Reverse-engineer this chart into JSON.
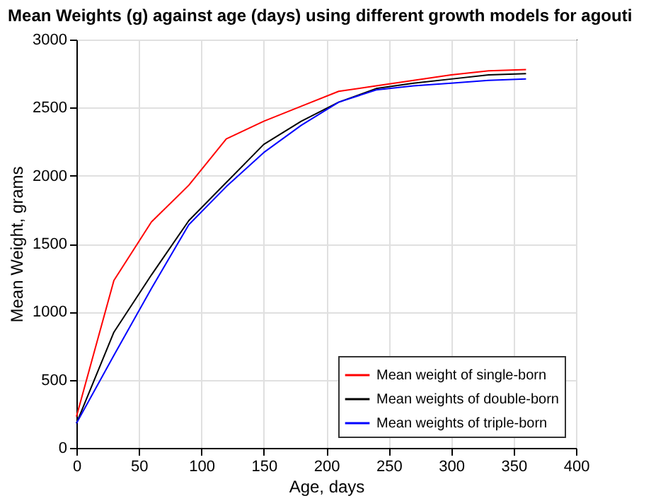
{
  "chart_data": {
    "type": "line",
    "title": "Mean Weights (g) against age (days) using different growth models for agouti",
    "xlabel": "Age, days",
    "ylabel": "Mean Weight, grams",
    "x": [
      0,
      30,
      60,
      90,
      120,
      150,
      180,
      210,
      240,
      270,
      300,
      330,
      360
    ],
    "series": [
      {
        "name": "Mean weight of single-born",
        "color": "#ff0000",
        "values": [
          230,
          1230,
          1660,
          1930,
          2270,
          2400,
          2510,
          2620,
          2660,
          2700,
          2740,
          2770,
          2780
        ]
      },
      {
        "name": "Mean weights of double-born",
        "color": "#000000",
        "values": [
          180,
          850,
          1270,
          1670,
          1950,
          2230,
          2400,
          2540,
          2640,
          2680,
          2710,
          2740,
          2750
        ]
      },
      {
        "name": "Mean weights of triple-born",
        "color": "#0000ff",
        "values": [
          180,
          680,
          1170,
          1640,
          1920,
          2170,
          2370,
          2540,
          2630,
          2660,
          2680,
          2700,
          2710
        ]
      }
    ],
    "xlim": [
      0,
      400
    ],
    "xticks": [
      0,
      50,
      100,
      150,
      200,
      250,
      300,
      350,
      400
    ],
    "ylim": [
      0,
      3000
    ],
    "yticks": [
      0,
      500,
      1000,
      1500,
      2000,
      2500,
      3000
    ],
    "grid": true,
    "legend": "bottom right",
    "marker": "none",
    "line_style": "solid"
  }
}
